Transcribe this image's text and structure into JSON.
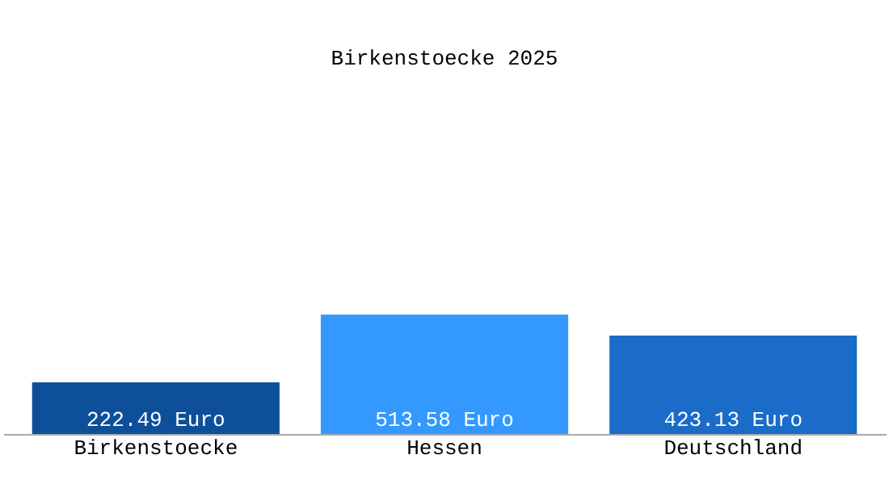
{
  "chart_data": {
    "type": "bar",
    "title": "Birkenstoecke 2025",
    "categories": [
      "Birkenstoecke",
      "Hessen",
      "Deutschland"
    ],
    "values": [
      222.49,
      513.58,
      423.13
    ],
    "value_labels": [
      "222.49 Euro",
      "513.58 Euro",
      "423.13 Euro"
    ],
    "colors": [
      "#0e4f9a",
      "#3399ff",
      "#1a6cc8"
    ],
    "grid": false,
    "tick_labels": "x"
  }
}
